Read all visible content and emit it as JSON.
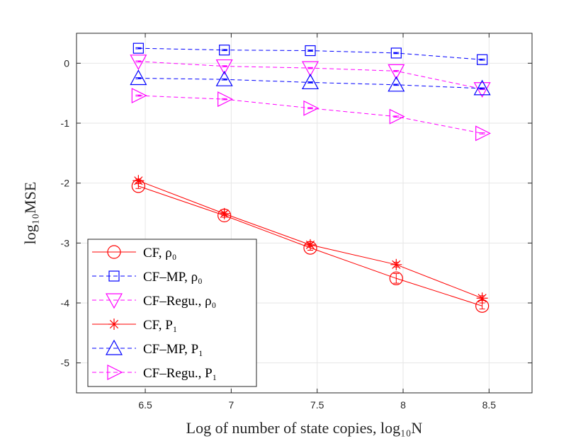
{
  "chart_data": {
    "type": "line",
    "title": "",
    "xlabel": "Log of number of state copies, log₁₀N",
    "ylabel": "log₁₀MSE",
    "xlim": [
      6.1,
      8.75
    ],
    "ylim": [
      -5.5,
      0.5
    ],
    "xticks": [
      6.5,
      7,
      7.5,
      8,
      8.5
    ],
    "xtick_labels": [
      "6.5",
      "7",
      "7.5",
      "8",
      "8.5"
    ],
    "yticks": [
      0,
      -1,
      -2,
      -3,
      -4,
      -5
    ],
    "ytick_labels": [
      "0",
      "-1",
      "-2",
      "-3",
      "-4",
      "-5"
    ],
    "grid": true,
    "legend_position": "bottom-left",
    "x": [
      6.46,
      6.96,
      7.46,
      7.96,
      8.46
    ],
    "series": [
      {
        "name": "CF, ρ₀",
        "color": "#ff0000",
        "marker": "circle",
        "dash": "solid",
        "values": [
          -2.05,
          -2.54,
          -3.08,
          -3.59,
          -4.05
        ],
        "errors": [
          0.04,
          0.03,
          0.04,
          0.08,
          0.05
        ]
      },
      {
        "name": "CF–MP, ρ₀",
        "color": "#0000ff",
        "marker": "square",
        "dash": "dashed",
        "values": [
          0.25,
          0.22,
          0.21,
          0.17,
          0.06
        ],
        "errors": [
          0.01,
          0.01,
          0.01,
          0.01,
          0.01
        ]
      },
      {
        "name": "CF–Regu., ρ₀",
        "color": "#ff00ff",
        "marker": "triangle-down",
        "dash": "dashed",
        "values": [
          0.03,
          -0.05,
          -0.08,
          -0.13,
          -0.43
        ],
        "errors": [
          0.01,
          0.01,
          0.01,
          0.01,
          0.01
        ]
      },
      {
        "name": "CF, P₁",
        "color": "#ff0000",
        "marker": "asterisk",
        "dash": "solid",
        "values": [
          -1.96,
          -2.51,
          -3.03,
          -3.36,
          -3.92
        ],
        "errors": [
          0.03,
          0.03,
          0.03,
          0.04,
          0.04
        ]
      },
      {
        "name": "CF–MP, P₁",
        "color": "#0000ff",
        "marker": "triangle-up",
        "dash": "dashed",
        "values": [
          -0.25,
          -0.27,
          -0.32,
          -0.36,
          -0.42
        ],
        "errors": [
          0.01,
          0.01,
          0.01,
          0.01,
          0.01
        ]
      },
      {
        "name": "CF–Regu., P₁",
        "color": "#ff00ff",
        "marker": "triangle-right",
        "dash": "dashed",
        "values": [
          -0.54,
          -0.6,
          -0.75,
          -0.89,
          -1.17
        ],
        "errors": [
          0.01,
          0.01,
          0.01,
          0.01,
          0.01
        ]
      }
    ]
  }
}
